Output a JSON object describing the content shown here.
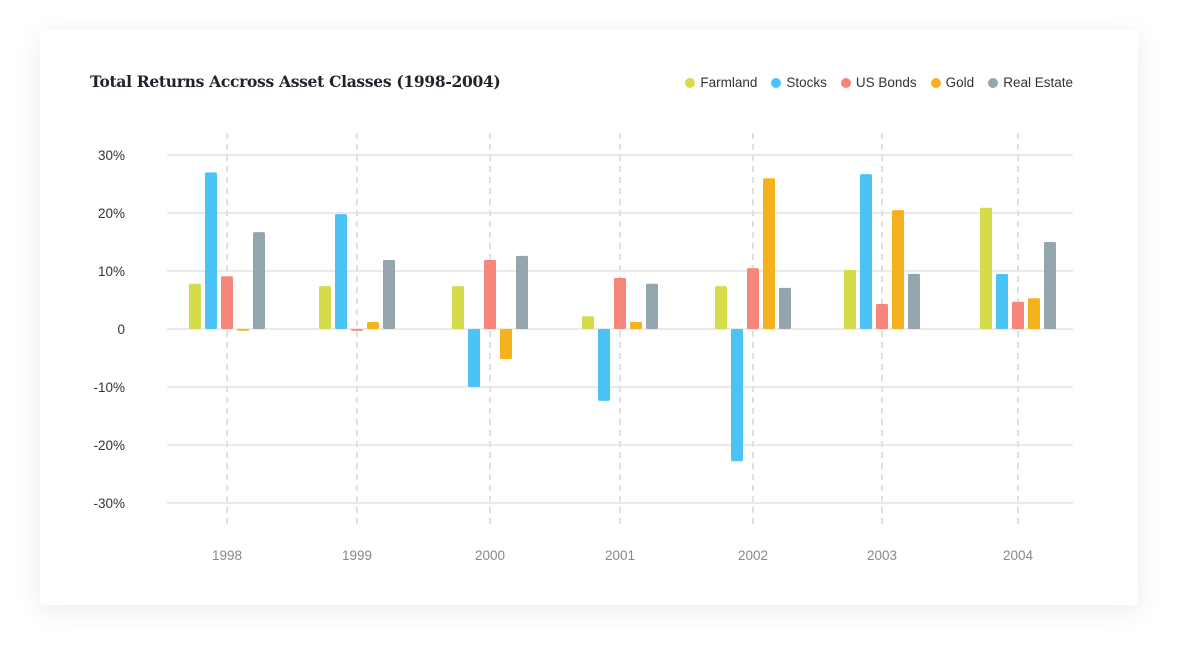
{
  "chart_data": {
    "type": "bar",
    "title": "Total Returns Accross Asset Classes (1998-2004)",
    "xlabel": "",
    "ylabel": "",
    "ylim": [
      -30,
      30
    ],
    "yticks": [
      {
        "value": 30,
        "label": "30%"
      },
      {
        "value": 20,
        "label": "20%"
      },
      {
        "value": 10,
        "label": "10%"
      },
      {
        "value": 0,
        "label": "0"
      },
      {
        "value": -10,
        "label": "-10%"
      },
      {
        "value": -20,
        "label": "-20%"
      },
      {
        "value": -30,
        "label": "-30%"
      }
    ],
    "categories": [
      "1998",
      "1999",
      "2000",
      "2001",
      "2002",
      "2003",
      "2004"
    ],
    "legend_position": "top-right",
    "grid": true,
    "series": [
      {
        "name": "Farmland",
        "color": "#d4dc4c",
        "values": [
          7.8,
          7.4,
          7.4,
          2.2,
          7.4,
          10.2,
          20.9
        ]
      },
      {
        "name": "Stocks",
        "color": "#4cc3f7",
        "values": [
          27.0,
          19.8,
          -10.0,
          -12.4,
          -22.8,
          26.7,
          9.5
        ]
      },
      {
        "name": "US Bonds",
        "color": "#f7867a",
        "values": [
          9.1,
          -0.3,
          11.9,
          8.8,
          10.5,
          4.3,
          4.7
        ]
      },
      {
        "name": "Gold",
        "color": "#f6b21c",
        "values": [
          -0.3,
          1.2,
          -5.2,
          1.2,
          26.0,
          20.5,
          5.3
        ]
      },
      {
        "name": "Real Estate",
        "color": "#93a5ad",
        "values": [
          16.7,
          11.9,
          12.6,
          7.8,
          7.1,
          9.5,
          15.0
        ]
      }
    ]
  }
}
